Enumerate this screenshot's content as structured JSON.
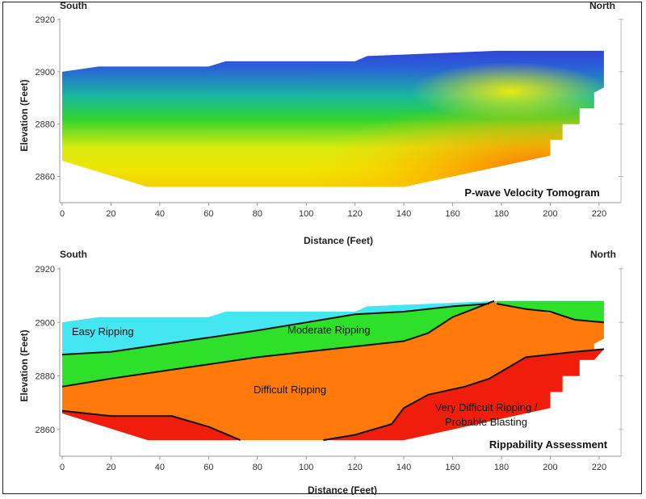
{
  "chart_data": [
    {
      "type": "heatmap",
      "title": "P-wave Velocity Tomogram",
      "xlabel": "Distance (Feet)",
      "ylabel": "Elevation (Feet)",
      "xlim": [
        0,
        225
      ],
      "ylim": [
        2850,
        2920
      ],
      "x_ticks": [
        "0",
        "20",
        "40",
        "60",
        "80",
        "100",
        "120",
        "140",
        "160",
        "180",
        "200",
        "220"
      ],
      "y_ticks": [
        "2920",
        "2900",
        "2880",
        "2860"
      ],
      "left_label": "South",
      "right_label": "North",
      "surface_profile": [
        [
          0,
          2900
        ],
        [
          15,
          2902
        ],
        [
          60,
          2902
        ],
        [
          67,
          2904
        ],
        [
          120,
          2904
        ],
        [
          125,
          2906
        ],
        [
          178,
          2908
        ],
        [
          222,
          2908
        ]
      ],
      "base_profile": [
        [
          0,
          2866
        ],
        [
          35,
          2856
        ],
        [
          140,
          2856
        ],
        [
          200,
          2868
        ],
        [
          200,
          2874
        ],
        [
          205,
          2874
        ],
        [
          205,
          2880
        ],
        [
          212,
          2880
        ],
        [
          212,
          2886
        ],
        [
          218,
          2886
        ],
        [
          218,
          2892
        ],
        [
          222,
          2894
        ]
      ],
      "colors": {
        "slow": "#3a2cd6",
        "medium": "#2fd32f",
        "fast": "#f0e400",
        "fastest": "#ff6a00"
      }
    },
    {
      "type": "area",
      "title": "Rippability Assessment",
      "xlabel": "Distance (Feet)",
      "ylabel": "Elevation (Feet)",
      "xlim": [
        0,
        225
      ],
      "ylim": [
        2850,
        2920
      ],
      "x_ticks": [
        "0",
        "20",
        "40",
        "60",
        "80",
        "100",
        "120",
        "140",
        "160",
        "180",
        "200",
        "220"
      ],
      "y_ticks": [
        "2920",
        "2900",
        "2880",
        "2860"
      ],
      "left_label": "South",
      "right_label": "North",
      "zones": [
        {
          "name": "Easy Ripping",
          "color": "#44e6f2"
        },
        {
          "name": "Moderate Ripping",
          "color": "#2ee02a"
        },
        {
          "name": "Difficult Ripping",
          "color": "#ff7a0a"
        },
        {
          "name": "Very Difficult Ripping /",
          "name2": "Probable Blasting",
          "color": "#f01c0c"
        }
      ]
    }
  ]
}
